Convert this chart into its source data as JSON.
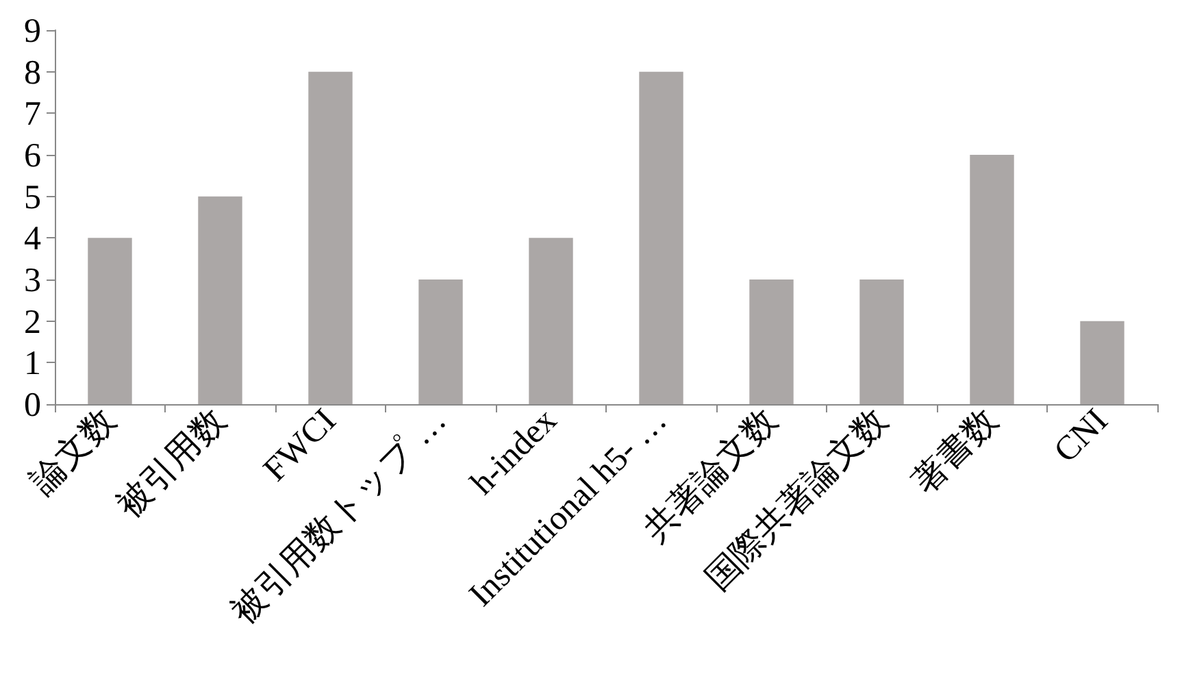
{
  "chart_data": {
    "type": "bar",
    "categories": [
      "論文数",
      "被引用数",
      "FWCI",
      "被引用数トップ …",
      "h-index",
      "Institutional h5- …",
      "共著論文数",
      "国際共著論文数",
      "著書数",
      "CNI"
    ],
    "values": [
      4,
      5,
      8,
      3,
      4,
      8,
      3,
      3,
      6,
      2
    ],
    "color": "#aba7a6",
    "ylim": [
      0,
      9
    ],
    "yticks": [
      0,
      1,
      2,
      3,
      4,
      5,
      6,
      7,
      8,
      9
    ],
    "grid": false,
    "legend": false
  }
}
